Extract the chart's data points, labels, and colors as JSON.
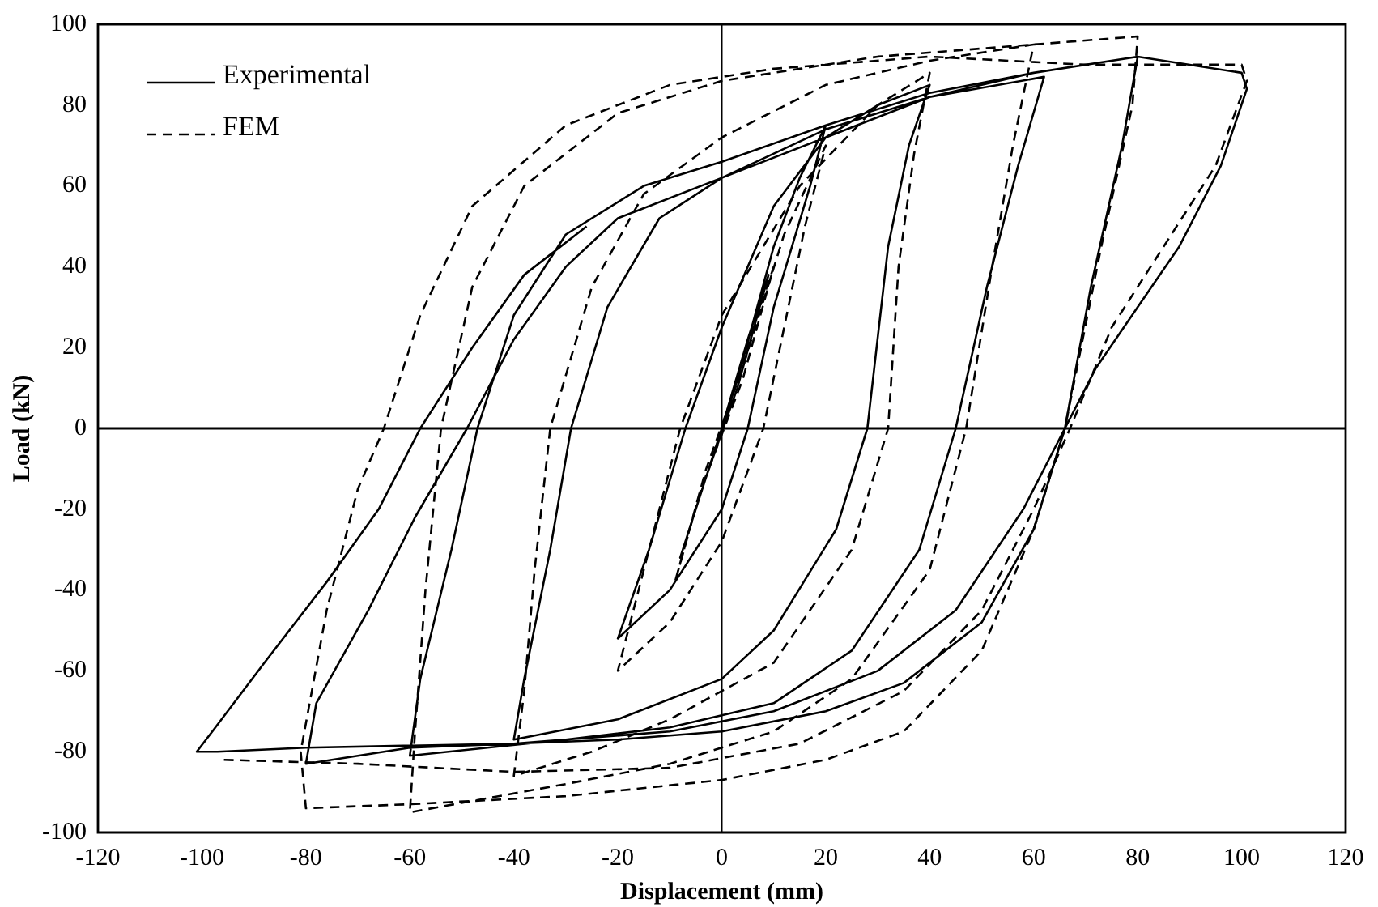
{
  "chart_data": {
    "type": "line",
    "xlabel": "Displacement (mm)",
    "ylabel": "Load (kN)",
    "xlim": [
      -120,
      120
    ],
    "xticks": [
      -120,
      -100,
      -80,
      -60,
      -40,
      -20,
      0,
      20,
      40,
      60,
      80,
      100,
      120
    ],
    "ylim": [
      -100,
      100
    ],
    "yticks": [
      -100,
      -80,
      -60,
      -40,
      -20,
      0,
      20,
      40,
      60,
      80,
      100
    ],
    "grid": false,
    "legend": "top left",
    "marker": "none",
    "ref_lines": [
      {
        "axis": "x",
        "value": 0
      },
      {
        "axis": "y",
        "value": 0
      }
    ],
    "series": [
      {
        "name": "Experimental",
        "color": "#000000",
        "line_style": "solid",
        "x": [
          0,
          5,
          9,
          3,
          -3,
          -8,
          -3,
          3,
          10,
          15,
          20,
          17,
          10,
          5,
          0,
          -10,
          -20,
          -14,
          -7,
          0,
          10,
          20,
          30,
          40,
          36,
          32,
          28,
          22,
          10,
          0,
          -20,
          -40,
          -38,
          -33,
          -29,
          -22,
          -12,
          0,
          20,
          40,
          62,
          57,
          51,
          45,
          38,
          25,
          10,
          -10,
          -30,
          -60,
          -58,
          -52,
          -47,
          -40,
          -30,
          -15,
          0,
          20,
          40,
          60,
          80,
          77,
          71,
          66,
          60,
          50,
          35,
          20,
          0,
          -20,
          -40,
          -60,
          -80,
          -78,
          -68,
          -59,
          -49,
          -40,
          -30,
          -20,
          0,
          20,
          40,
          60,
          80,
          100,
          101,
          96,
          88,
          80,
          72,
          66,
          58,
          45,
          30,
          10,
          -10,
          -40,
          -80,
          -97,
          -101,
          -98,
          -88,
          -76,
          -66,
          -58,
          -48,
          -38,
          -26
        ],
        "values": [
          0,
          22,
          38,
          10,
          -12,
          -32,
          -12,
          12,
          45,
          62,
          75,
          60,
          30,
          0,
          -20,
          -40,
          -52,
          -30,
          0,
          25,
          55,
          72,
          80,
          85,
          70,
          45,
          0,
          -25,
          -50,
          -62,
          -72,
          -77,
          -62,
          -30,
          0,
          30,
          52,
          62,
          74,
          82,
          87,
          65,
          35,
          0,
          -30,
          -55,
          -68,
          -74,
          -77,
          -81,
          -62,
          -30,
          0,
          28,
          48,
          60,
          66,
          75,
          83,
          88,
          92,
          70,
          35,
          0,
          -25,
          -48,
          -63,
          -70,
          -75,
          -77,
          -78,
          -79,
          -83,
          -68,
          -45,
          -22,
          0,
          22,
          40,
          52,
          62,
          72,
          82,
          88,
          92,
          88,
          84,
          65,
          45,
          30,
          15,
          0,
          -20,
          -45,
          -60,
          -70,
          -75,
          -78,
          -79,
          -80,
          -80,
          -75,
          -58,
          -38,
          -20,
          0,
          20,
          38,
          50
        ]
      },
      {
        "name": "FEM",
        "color": "#000000",
        "line_style": "dashed",
        "x": [
          0,
          6,
          10,
          4,
          -4,
          -9,
          -3,
          4,
          12,
          20,
          16,
          8,
          0,
          -10,
          -20,
          -15,
          -8,
          0,
          15,
          30,
          40,
          37,
          34,
          32,
          25,
          10,
          -10,
          -25,
          -40,
          -38,
          -36,
          -33,
          -25,
          -15,
          0,
          20,
          40,
          60,
          56,
          52,
          47,
          40,
          25,
          10,
          -10,
          -30,
          -60,
          -59,
          -57,
          -54,
          -48,
          -38,
          -20,
          0,
          30,
          60,
          80,
          79,
          73,
          66,
          60,
          50,
          35,
          20,
          0,
          -30,
          -60,
          -80,
          -81,
          -76,
          -70,
          -65,
          -58,
          -48,
          -30,
          -10,
          10,
          40,
          70,
          90,
          100,
          101,
          95,
          85,
          75,
          67,
          60,
          50,
          35,
          15,
          -10,
          -40,
          -70,
          -96
        ],
        "values": [
          0,
          25,
          40,
          12,
          -15,
          -38,
          -10,
          15,
          48,
          70,
          50,
          0,
          -28,
          -48,
          -60,
          -35,
          0,
          28,
          60,
          80,
          88,
          68,
          40,
          0,
          -30,
          -58,
          -72,
          -80,
          -86,
          -65,
          -35,
          0,
          35,
          58,
          72,
          85,
          91,
          95,
          70,
          40,
          0,
          -35,
          -62,
          -75,
          -83,
          -88,
          -95,
          -75,
          -40,
          0,
          35,
          60,
          78,
          86,
          92,
          95,
          97,
          80,
          45,
          0,
          -25,
          -55,
          -75,
          -82,
          -87,
          -91,
          -93,
          -94,
          -80,
          -45,
          -15,
          0,
          28,
          55,
          75,
          85,
          89,
          92,
          90,
          90,
          90,
          86,
          65,
          45,
          25,
          0,
          -20,
          -45,
          -65,
          -78,
          -84,
          -85,
          -83,
          -82
        ]
      }
    ]
  }
}
